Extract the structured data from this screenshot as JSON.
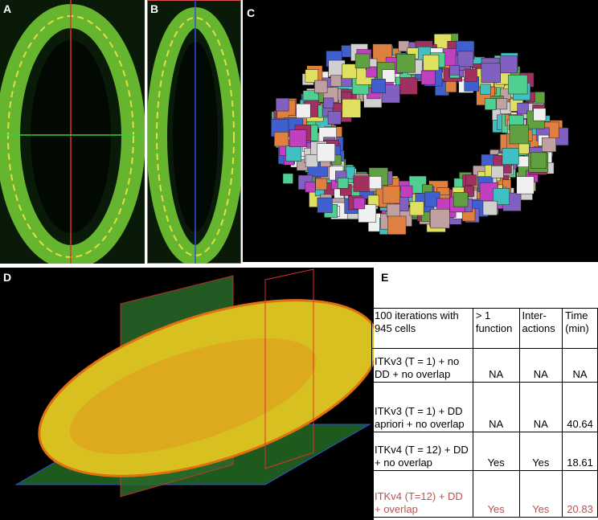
{
  "panels": [
    "A",
    "B",
    "C",
    "D",
    "E"
  ],
  "table": {
    "header": [
      "100 iterations with 945 cells",
      "> 1 function",
      "Inter-actions",
      "Time (min)"
    ],
    "rows": [
      [
        "ITKv3 (T = 1) + no DD + no overlap",
        "NA",
        "NA",
        "NA"
      ],
      [
        "ITKv3 (T = 1) + DD apriori + no overlap",
        "NA",
        "NA",
        "40.64"
      ],
      [
        "ITKv4 (T = 12) + DD + no overlap",
        "Yes",
        "Yes",
        "18.61"
      ],
      [
        "ITKv4 (T=12) + DD + overlap",
        "Yes",
        "Yes",
        "20.83"
      ]
    ]
  }
}
